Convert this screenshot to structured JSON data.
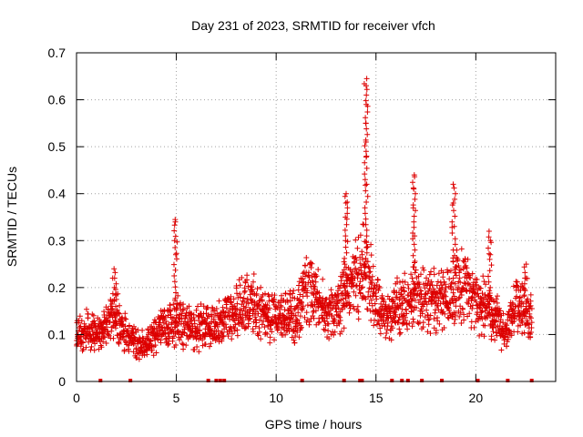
{
  "chart_data": {
    "type": "scatter",
    "title": "Day 231 of 2023, SRMTID for receiver vfch",
    "xlabel": "GPS time / hours",
    "ylabel": "SRMTID / TECUs",
    "xlim": [
      0,
      24
    ],
    "ylim": [
      0,
      0.7
    ],
    "x_ticks": [
      0,
      5,
      10,
      15,
      20
    ],
    "x_tick_labels": [
      "0",
      "5",
      "10",
      "15",
      "20"
    ],
    "y_ticks": [
      0,
      0.1,
      0.2,
      0.3,
      0.4,
      0.5,
      0.6,
      0.7
    ],
    "y_tick_labels": [
      "0",
      "0.1",
      "0.2",
      "0.3",
      "0.4",
      "0.5",
      "0.6",
      "0.7"
    ],
    "grid": true,
    "marker": "plus",
    "colors": {
      "points": "#dd0000",
      "grid": "#a0a0a0",
      "axes": "#000000"
    },
    "trend": [
      [
        0.0,
        0.09
      ],
      [
        0.5,
        0.11
      ],
      [
        1.0,
        0.1
      ],
      [
        1.5,
        0.12
      ],
      [
        2.0,
        0.14
      ],
      [
        2.5,
        0.1
      ],
      [
        3.0,
        0.08
      ],
      [
        3.5,
        0.08
      ],
      [
        4.0,
        0.1
      ],
      [
        4.5,
        0.12
      ],
      [
        5.0,
        0.13
      ],
      [
        5.5,
        0.12
      ],
      [
        6.0,
        0.11
      ],
      [
        6.5,
        0.12
      ],
      [
        7.0,
        0.12
      ],
      [
        7.5,
        0.13
      ],
      [
        8.0,
        0.15
      ],
      [
        8.5,
        0.16
      ],
      [
        9.0,
        0.16
      ],
      [
        9.5,
        0.14
      ],
      [
        10.0,
        0.13
      ],
      [
        10.5,
        0.14
      ],
      [
        11.0,
        0.14
      ],
      [
        11.5,
        0.2
      ],
      [
        12.0,
        0.18
      ],
      [
        12.5,
        0.15
      ],
      [
        13.0,
        0.14
      ],
      [
        13.5,
        0.19
      ],
      [
        14.0,
        0.22
      ],
      [
        14.5,
        0.25
      ],
      [
        15.0,
        0.17
      ],
      [
        15.5,
        0.13
      ],
      [
        16.0,
        0.16
      ],
      [
        16.5,
        0.16
      ],
      [
        17.0,
        0.19
      ],
      [
        17.5,
        0.18
      ],
      [
        18.0,
        0.17
      ],
      [
        18.5,
        0.18
      ],
      [
        19.0,
        0.2
      ],
      [
        19.5,
        0.2
      ],
      [
        20.0,
        0.17
      ],
      [
        20.5,
        0.16
      ],
      [
        21.0,
        0.14
      ],
      [
        21.5,
        0.1
      ],
      [
        22.0,
        0.17
      ],
      [
        22.5,
        0.16
      ],
      [
        22.8,
        0.14
      ]
    ],
    "peaks": [
      {
        "x": 1.9,
        "values": [
          0.2,
          0.22,
          0.24
        ]
      },
      {
        "x": 4.95,
        "values": [
          0.27,
          0.3,
          0.34,
          0.345
        ]
      },
      {
        "x": 13.5,
        "values": [
          0.3,
          0.35,
          0.38,
          0.4
        ]
      },
      {
        "x": 14.5,
        "values": [
          0.42,
          0.48,
          0.51,
          0.55,
          0.59,
          0.63,
          0.645
        ]
      },
      {
        "x": 16.9,
        "values": [
          0.31,
          0.37,
          0.41,
          0.44
        ]
      },
      {
        "x": 18.9,
        "values": [
          0.33,
          0.38,
          0.42
        ]
      },
      {
        "x": 20.7,
        "values": [
          0.27,
          0.3,
          0.32
        ]
      },
      {
        "x": 22.5,
        "values": [
          0.22,
          0.25
        ]
      }
    ],
    "zero_markers": [
      1.2,
      2.7,
      6.6,
      7.0,
      7.2,
      7.4,
      11.3,
      13.4,
      14.2,
      14.3,
      15.8,
      16.3,
      16.6,
      17.3,
      18.3,
      20.1,
      21.6,
      22.8
    ]
  }
}
